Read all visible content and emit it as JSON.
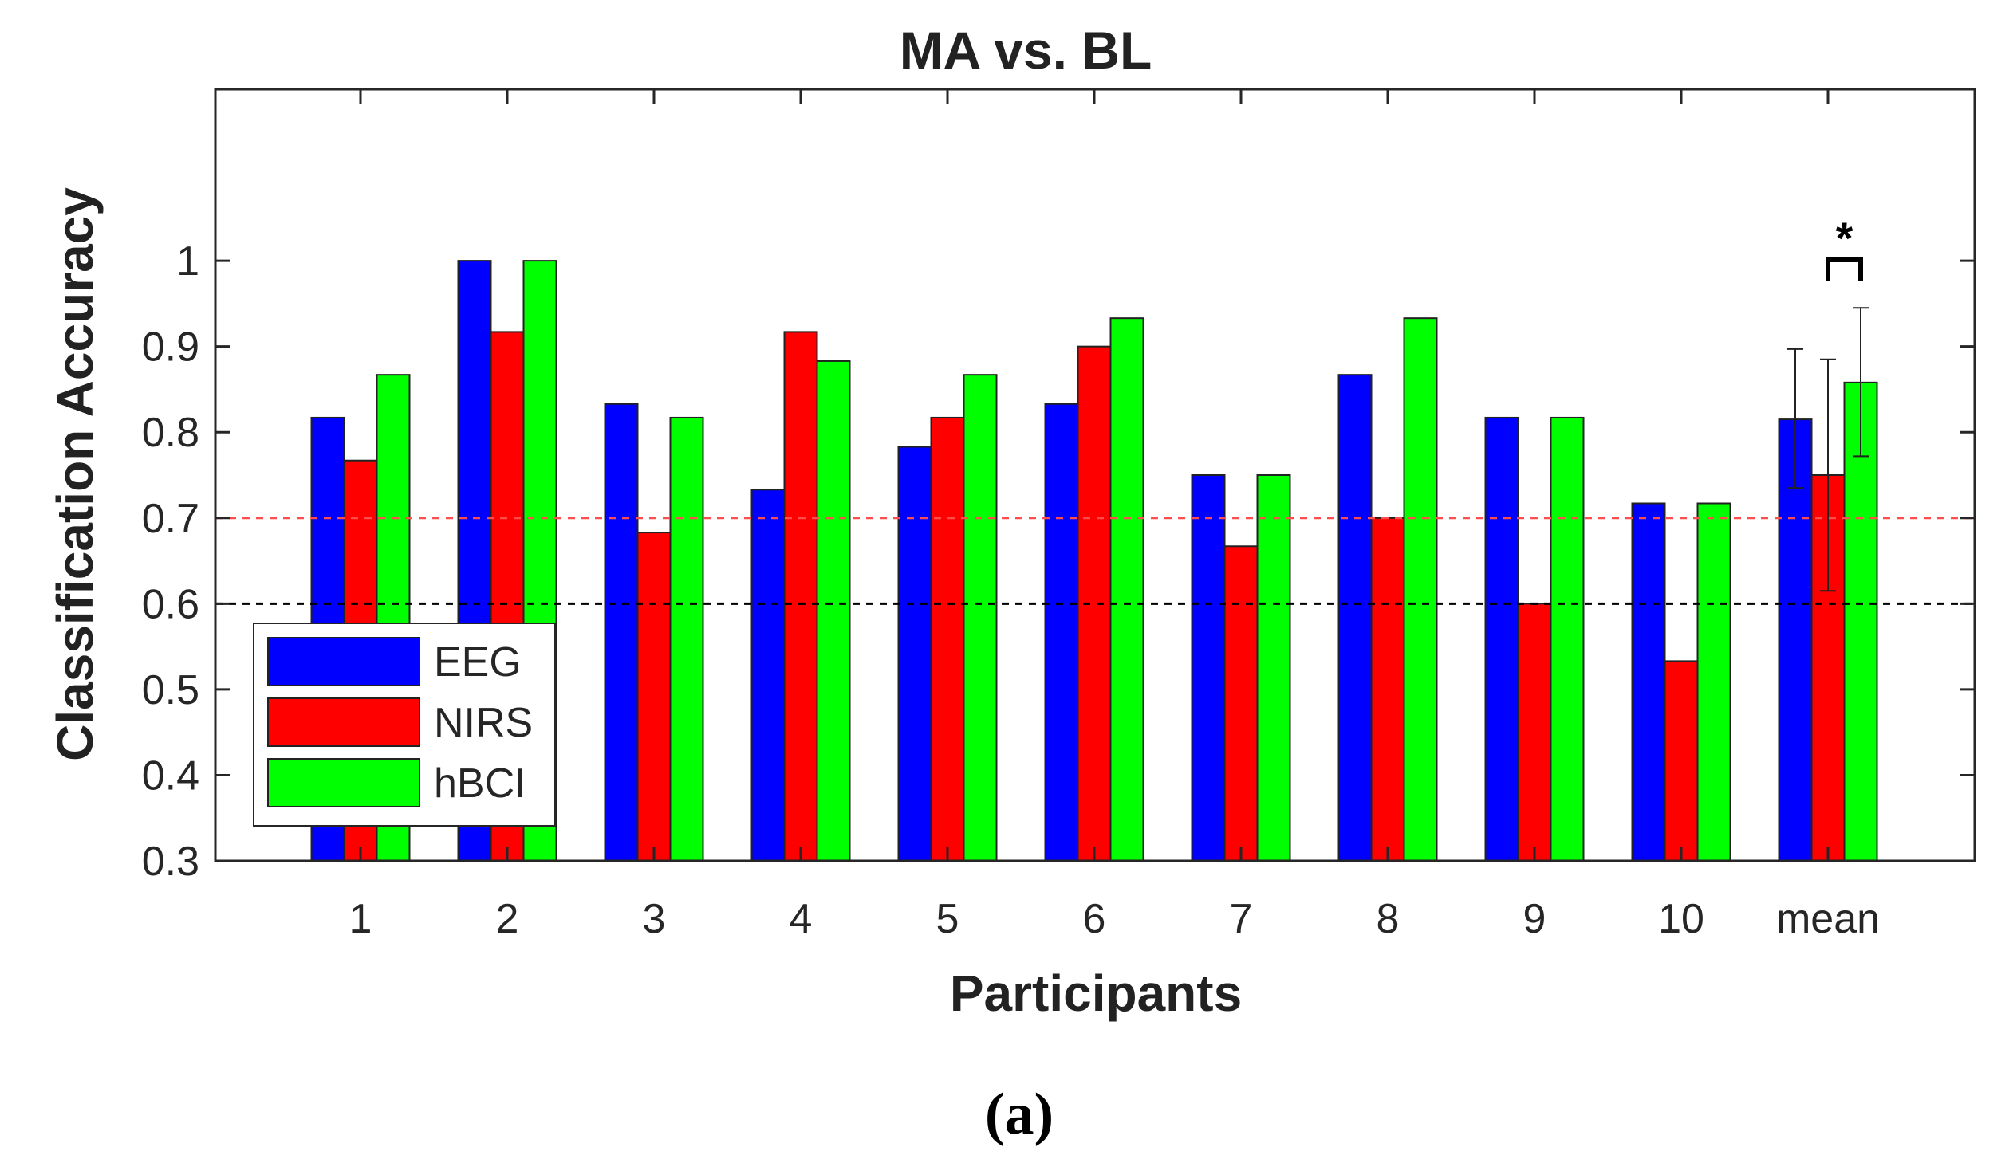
{
  "chart_data": {
    "type": "bar",
    "title": "MA vs. BL",
    "xlabel": "Participants",
    "ylabel": "Classification Accuracy",
    "ylim": [
      0.3,
      1.2
    ],
    "yticks": [
      "0.3",
      "0.4",
      "0.5",
      "0.6",
      "0.7",
      "0.8",
      "0.9",
      "1"
    ],
    "categories": [
      "1",
      "2",
      "3",
      "4",
      "5",
      "6",
      "7",
      "8",
      "9",
      "10",
      "mean"
    ],
    "series": [
      {
        "name": "EEG",
        "color": "#0000ff",
        "values": [
          0.817,
          1.0,
          0.833,
          0.733,
          0.783,
          0.833,
          0.75,
          0.867,
          0.817,
          0.717,
          0.815
        ]
      },
      {
        "name": "NIRS",
        "color": "#ff0000",
        "values": [
          0.767,
          0.917,
          0.683,
          0.917,
          0.817,
          0.9,
          0.667,
          0.7,
          0.6,
          0.533,
          0.75
        ]
      },
      {
        "name": "hBCI",
        "color": "#00ff00",
        "values": [
          0.867,
          1.0,
          0.817,
          0.883,
          0.867,
          0.933,
          0.75,
          0.933,
          0.817,
          0.717,
          0.858
        ]
      }
    ],
    "error_bars": {
      "category": "mean",
      "EEG": [
        0.735,
        0.897
      ],
      "NIRS": [
        0.615,
        0.885
      ],
      "hBCI": [
        0.772,
        0.945
      ]
    },
    "reference_lines": [
      {
        "value": 0.7,
        "color": "#ff4d4d",
        "style": "dashed"
      },
      {
        "value": 0.6,
        "color": "#000000",
        "style": "dashed"
      }
    ],
    "significance": {
      "label": "*",
      "between": [
        "NIRS",
        "hBCI"
      ],
      "category": "mean"
    },
    "legend": {
      "position": "bottom-left",
      "entries": [
        "EEG",
        "NIRS",
        "hBCI"
      ]
    },
    "grid": false
  },
  "caption": "(a)"
}
